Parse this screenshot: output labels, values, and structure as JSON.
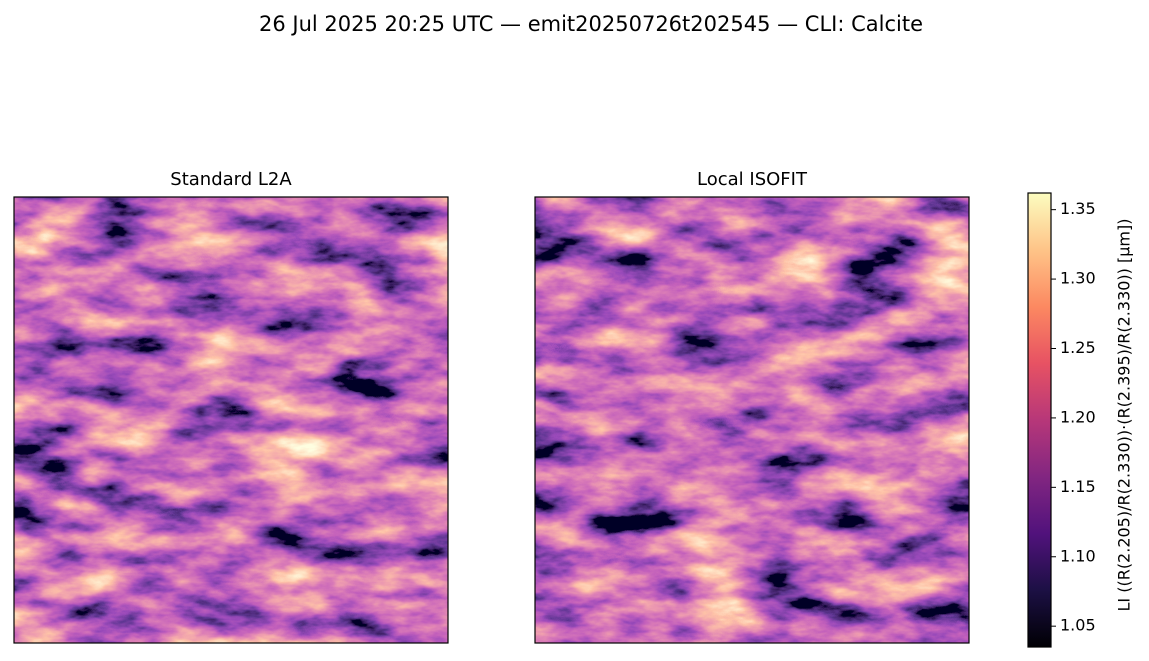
{
  "chart_data": {
    "type": "image",
    "title": "26 Jul 2025 20:25 UTC — emit20250726t202545 — CLI: Calcite",
    "panels": [
      {
        "title": "Standard L2A"
      },
      {
        "title": "Local ISOFIT"
      }
    ],
    "colorbar": {
      "label": "LI  ((R(2.205)/R(2.330))·(R(2.395)/R(2.330))  [μm])",
      "colormap": "magma",
      "lim": [
        1.035,
        1.362
      ],
      "ticks": [
        1.05,
        {
          "value": 1.1,
          "label": "1.10"
        },
        1.15,
        {
          "value": 1.2,
          "label": "1.20"
        },
        1.25,
        {
          "value": 1.3,
          "label": "1.30"
        },
        1.35
      ]
    }
  }
}
